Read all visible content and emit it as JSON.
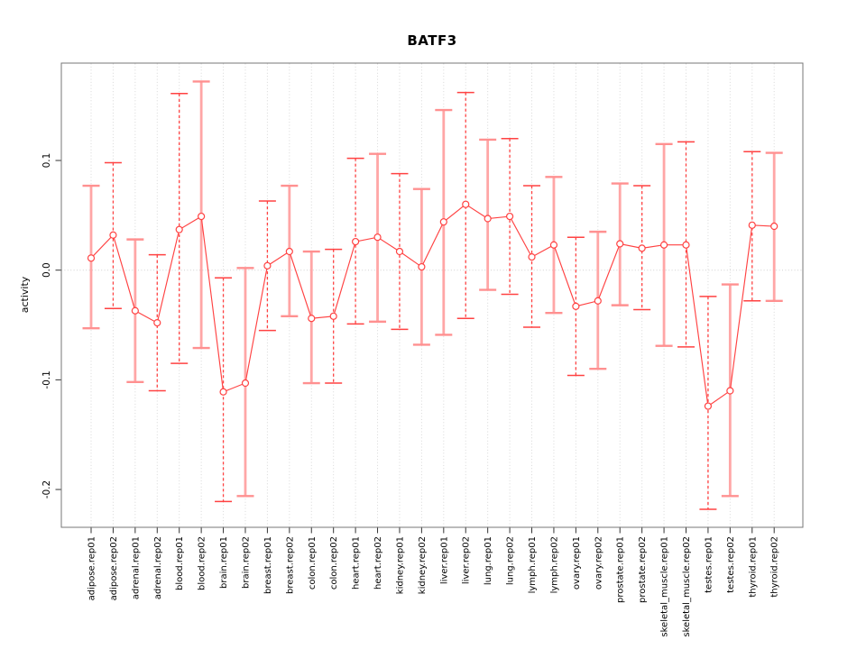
{
  "chart_data": {
    "type": "scatter",
    "subtype": "point-estimates-with-error-bars",
    "title": "BATF3",
    "xlabel": "",
    "ylabel": "activity",
    "ylim": [
      -0.235,
      0.19
    ],
    "yticks": [
      0.1,
      0.0,
      -0.1,
      -0.2
    ],
    "ytick_labels": [
      "0.1",
      "0.0",
      "-0.1",
      "-0.2"
    ],
    "grid": {
      "vertical_dotted_per_category": true,
      "horizontal_zero_line_dotted": true
    },
    "legend": "none",
    "marker": "open-circle",
    "categories": [
      "adipose.rep01",
      "adipose.rep02",
      "adrenal.rep01",
      "adrenal.rep02",
      "blood.rep01",
      "blood.rep02",
      "brain.rep01",
      "brain.rep02",
      "breast.rep01",
      "breast.rep02",
      "colon.rep01",
      "colon.rep02",
      "heart.rep01",
      "heart.rep02",
      "kidney.rep01",
      "kidney.rep02",
      "liver.rep01",
      "liver.rep02",
      "lung.rep01",
      "lung.rep02",
      "lymph.rep01",
      "lymph.rep02",
      "ovary.rep01",
      "ovary.rep02",
      "prostate.rep01",
      "prostate.rep02",
      "skeletal_muscle.rep01",
      "skeletal_muscle.rep02",
      "testes.rep01",
      "testes.rep02",
      "thyroid.rep01",
      "thyroid.rep02"
    ],
    "series": [
      {
        "name": "BATF3 activity",
        "values": [
          0.011,
          0.032,
          -0.037,
          -0.048,
          0.037,
          0.049,
          -0.111,
          -0.103,
          0.004,
          0.017,
          -0.044,
          -0.042,
          0.026,
          0.03,
          0.017,
          0.003,
          0.044,
          0.06,
          0.047,
          0.049,
          0.012,
          0.023,
          -0.033,
          -0.028,
          0.024,
          0.02,
          0.023,
          0.023,
          -0.124,
          -0.11,
          0.041,
          0.04
        ],
        "ci_low": [
          -0.053,
          -0.035,
          -0.102,
          -0.11,
          -0.085,
          -0.071,
          -0.211,
          -0.206,
          -0.055,
          -0.042,
          -0.103,
          -0.103,
          -0.049,
          -0.047,
          -0.054,
          -0.068,
          -0.059,
          -0.044,
          -0.018,
          -0.022,
          -0.052,
          -0.039,
          -0.096,
          -0.09,
          -0.032,
          -0.036,
          -0.069,
          -0.07,
          -0.218,
          -0.206,
          -0.028,
          -0.028
        ],
        "ci_high": [
          0.077,
          0.098,
          0.028,
          0.014,
          0.161,
          0.172,
          -0.007,
          0.002,
          0.063,
          0.077,
          0.017,
          0.019,
          0.102,
          0.106,
          0.088,
          0.074,
          0.146,
          0.162,
          0.119,
          0.12,
          0.077,
          0.085,
          0.03,
          0.035,
          0.079,
          0.077,
          0.115,
          0.117,
          -0.024,
          -0.013,
          0.108,
          0.107
        ],
        "bar_styles": [
          "solid",
          "dashed",
          "solid",
          "dashed",
          "dashed",
          "solid",
          "dashed",
          "solid",
          "dashed",
          "solid",
          "solid",
          "dashed",
          "dashed",
          "solid",
          "dashed",
          "solid",
          "solid",
          "dashed",
          "solid",
          "dashed",
          "dashed",
          "solid",
          "dashed",
          "solid",
          "solid",
          "dashed",
          "solid",
          "dashed",
          "dashed",
          "solid",
          "dashed",
          "solid"
        ]
      }
    ],
    "colors": {
      "line": "#ff4242",
      "marker": "#ff4242",
      "errorbar_solid": "#ffa6a6",
      "errorbar_solid_cap": "#ff9090",
      "errorbar_dashed": "#ff4242",
      "grid": "#d8d8d8",
      "zero_line": "#d0d0d0",
      "box": "#777777",
      "tick": "#333333"
    }
  }
}
